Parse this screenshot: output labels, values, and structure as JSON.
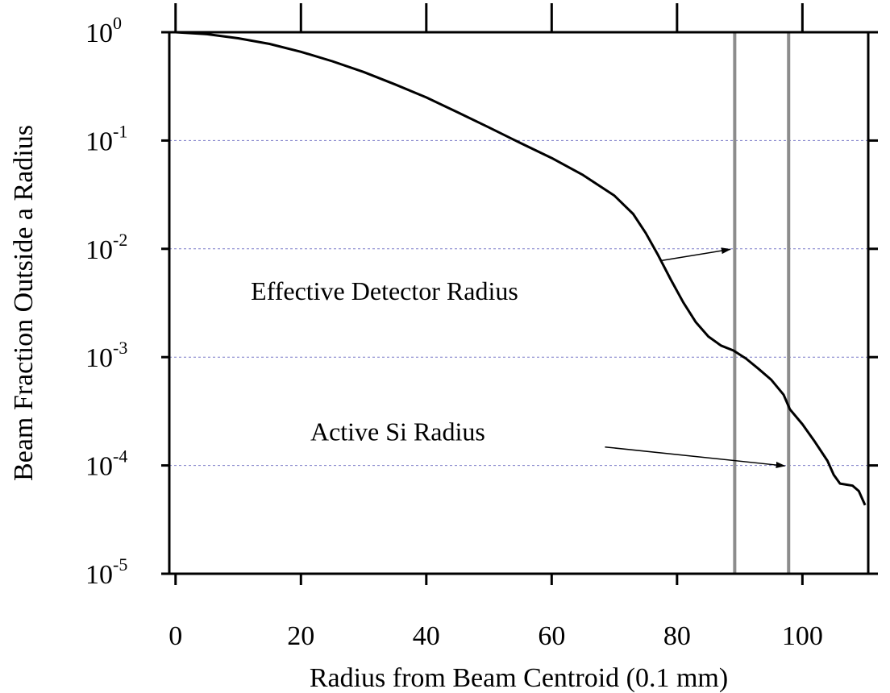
{
  "chart_data": {
    "type": "line",
    "xlabel": "Radius from Beam Centroid (0.1 mm)",
    "ylabel": "Beam Fraction Outside a Radius",
    "xlim": [
      -1,
      110.5
    ],
    "ylim": [
      1e-05,
      1
    ],
    "y_scale": "log",
    "grid": "y-major dashed",
    "x_ticks": [
      "0",
      "20",
      "40",
      "60",
      "80",
      "100"
    ],
    "y_ticks": [
      {
        "base": "10",
        "exp": "0"
      },
      {
        "base": "10",
        "exp": "-1"
      },
      {
        "base": "10",
        "exp": "-2"
      },
      {
        "base": "10",
        "exp": "-3"
      },
      {
        "base": "10",
        "exp": "-4"
      },
      {
        "base": "10",
        "exp": "-5"
      }
    ],
    "series": [
      {
        "points": [
          [
            0,
            1.0
          ],
          [
            5,
            0.96
          ],
          [
            10,
            0.88
          ],
          [
            15,
            0.78
          ],
          [
            20,
            0.66
          ],
          [
            25,
            0.54
          ],
          [
            30,
            0.43
          ],
          [
            35,
            0.33
          ],
          [
            40,
            0.25
          ],
          [
            45,
            0.182
          ],
          [
            50,
            0.132
          ],
          [
            55,
            0.095
          ],
          [
            60,
            0.069
          ],
          [
            65,
            0.048
          ],
          [
            70,
            0.031
          ],
          [
            73,
            0.021
          ],
          [
            75,
            0.014
          ],
          [
            77,
            0.0087
          ],
          [
            79,
            0.0052
          ],
          [
            81,
            0.0032
          ],
          [
            83,
            0.0021
          ],
          [
            85,
            0.00155
          ],
          [
            87,
            0.00128
          ],
          [
            89,
            0.00115
          ],
          [
            91,
            0.00097
          ],
          [
            93,
            0.00078
          ],
          [
            95,
            0.00062
          ],
          [
            97,
            0.00045
          ],
          [
            98,
            0.00033
          ],
          [
            100,
            0.00024
          ],
          [
            102,
            0.000165
          ],
          [
            104,
            0.00011
          ],
          [
            105,
            8.2e-05
          ],
          [
            106,
            6.8e-05
          ],
          [
            108,
            6.5e-05
          ],
          [
            109,
            5.8e-05
          ],
          [
            110,
            4.3e-05
          ]
        ],
        "color": "#000000"
      }
    ],
    "vertical_lines": [
      {
        "x": 89.2,
        "color": "#8c8c8c"
      },
      {
        "x": 97.8,
        "color": "#8c8c8c"
      }
    ],
    "annotations": [
      {
        "text": "Effective Detector Radius",
        "text_at": [
          12,
          0.0034
        ],
        "arrow_from": [
          77.6,
          0.0078
        ],
        "arrow_to": [
          88.5,
          0.0099
        ]
      },
      {
        "text": "Active Si Radius",
        "text_at": [
          21.5,
          0.00017
        ],
        "arrow_from": [
          68.5,
          0.000148
        ],
        "arrow_to": [
          97.2,
          9.9e-05
        ]
      }
    ]
  }
}
